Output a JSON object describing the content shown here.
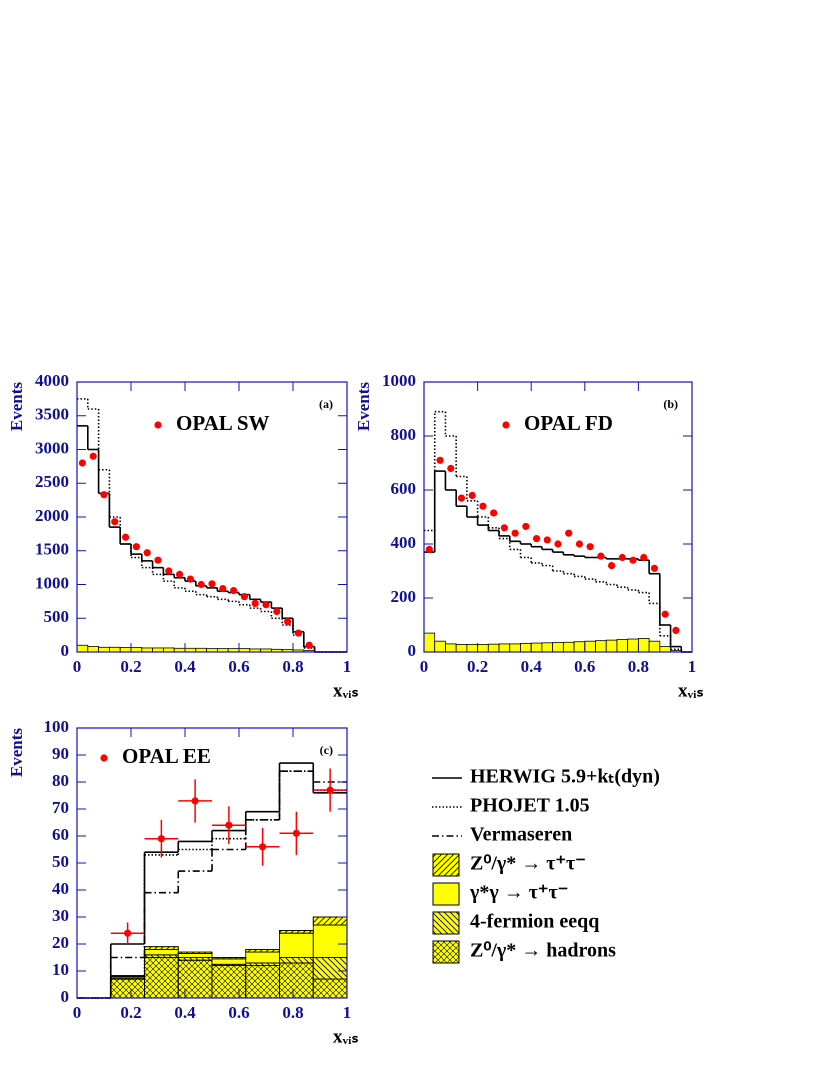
{
  "chart_data": [
    {
      "type": "histogram",
      "label": "(a)",
      "ylabel": "Events",
      "xlabel": "xᵥᵢₛ",
      "xlim": [
        0,
        1
      ],
      "ylim": [
        0,
        4000
      ],
      "xticks": [
        0,
        0.2,
        0.4,
        0.6,
        0.8,
        1
      ],
      "yticks": [
        0,
        500,
        1000,
        1500,
        2000,
        2500,
        3000,
        3500,
        4000
      ],
      "bins": [
        0,
        0.04,
        0.08,
        0.12,
        0.16,
        0.2,
        0.24,
        0.28,
        0.32,
        0.36,
        0.4,
        0.44,
        0.48,
        0.52,
        0.56,
        0.6,
        0.64,
        0.68,
        0.72,
        0.76,
        0.8,
        0.84,
        0.88,
        0.92,
        0.96,
        1
      ],
      "series": [
        {
          "name": "OPAL SW",
          "style": "points",
          "color": "#ff0000",
          "values": [
            2800,
            2900,
            2330,
            1930,
            1700,
            1560,
            1470,
            1360,
            1200,
            1150,
            1080,
            1000,
            1010,
            940,
            910,
            820,
            720,
            700,
            600,
            450,
            280,
            100,
            null,
            null,
            null
          ]
        },
        {
          "style": "solid",
          "color": "#000000",
          "values": [
            3350,
            3000,
            2350,
            1850,
            1600,
            1450,
            1350,
            1250,
            1150,
            1100,
            1050,
            980,
            950,
            900,
            880,
            850,
            780,
            740,
            650,
            500,
            300,
            80,
            0,
            0,
            0
          ]
        },
        {
          "style": "dotted",
          "color": "#000000",
          "values": [
            3750,
            3600,
            2700,
            2000,
            1600,
            1400,
            1250,
            1150,
            1050,
            950,
            900,
            850,
            820,
            780,
            750,
            700,
            650,
            600,
            500,
            400,
            250,
            60,
            0,
            0,
            0
          ]
        },
        {
          "style": "stacked",
          "color": "#ffff00",
          "values": [
            100,
            80,
            70,
            70,
            65,
            65,
            60,
            60,
            60,
            55,
            55,
            55,
            50,
            50,
            50,
            50,
            45,
            45,
            40,
            35,
            30,
            20,
            0,
            0,
            0
          ]
        }
      ]
    },
    {
      "type": "histogram",
      "label": "(b)",
      "ylabel": "Events",
      "xlabel": "xᵥᵢₛ",
      "xlim": [
        0,
        1
      ],
      "ylim": [
        0,
        1000
      ],
      "xticks": [
        0,
        0.2,
        0.4,
        0.6,
        0.8,
        1
      ],
      "yticks": [
        0,
        200,
        400,
        600,
        800,
        1000
      ],
      "bins": [
        0,
        0.04,
        0.08,
        0.12,
        0.16,
        0.2,
        0.24,
        0.28,
        0.32,
        0.36,
        0.4,
        0.44,
        0.48,
        0.52,
        0.56,
        0.6,
        0.64,
        0.68,
        0.72,
        0.76,
        0.8,
        0.84,
        0.88,
        0.92,
        0.96,
        1
      ],
      "series": [
        {
          "name": "OPAL FD",
          "style": "points",
          "color": "#ff0000",
          "values": [
            380,
            710,
            680,
            570,
            580,
            540,
            515,
            460,
            440,
            465,
            420,
            415,
            400,
            440,
            400,
            390,
            355,
            320,
            350,
            340,
            350,
            310,
            140,
            80,
            null
          ]
        },
        {
          "style": "solid",
          "color": "#000000",
          "values": [
            370,
            670,
            600,
            540,
            500,
            470,
            450,
            430,
            410,
            400,
            390,
            380,
            370,
            360,
            355,
            350,
            350,
            345,
            345,
            345,
            340,
            290,
            100,
            20,
            0
          ]
        },
        {
          "style": "dotted",
          "color": "#000000",
          "values": [
            450,
            890,
            800,
            650,
            560,
            500,
            460,
            420,
            380,
            350,
            330,
            320,
            300,
            290,
            280,
            270,
            260,
            250,
            240,
            230,
            220,
            180,
            60,
            10,
            0
          ]
        },
        {
          "style": "stacked",
          "color": "#ffff00",
          "values": [
            70,
            40,
            30,
            28,
            28,
            28,
            29,
            30,
            30,
            32,
            33,
            34,
            35,
            36,
            38,
            40,
            42,
            44,
            46,
            48,
            50,
            40,
            20,
            5,
            0
          ]
        }
      ]
    },
    {
      "type": "histogram",
      "label": "(c)",
      "ylabel": "Events",
      "xlabel": "xᵥᵢₛ",
      "xlim": [
        0,
        1
      ],
      "ylim": [
        0,
        100
      ],
      "xticks": [
        0,
        0.2,
        0.4,
        0.6,
        0.8,
        1
      ],
      "yticks": [
        0,
        10,
        20,
        30,
        40,
        50,
        60,
        70,
        80,
        90,
        100
      ],
      "bins": [
        0,
        0.125,
        0.25,
        0.375,
        0.5,
        0.625,
        0.75,
        0.875,
        1
      ],
      "series": [
        {
          "name": "OPAL EE",
          "style": "points",
          "color": "#ff0000",
          "values": [
            null,
            24,
            59,
            73,
            64,
            56,
            61,
            77
          ],
          "errors": [
            null,
            4,
            7,
            8,
            7,
            7,
            8,
            8
          ]
        },
        {
          "name": "HERWIG 5.9+kₜ(dyn)",
          "style": "solid",
          "color": "#000000",
          "values": [
            0,
            20,
            54,
            58,
            62,
            69,
            87,
            76
          ]
        },
        {
          "name": "PHOJET 1.05",
          "style": "dotted",
          "color": "#000000",
          "values": [
            0,
            7,
            53,
            55,
            59,
            66,
            84,
            77
          ]
        },
        {
          "name": "Vermaseren",
          "style": "dashdot",
          "color": "#000000",
          "values": [
            0,
            15,
            39,
            47,
            55,
            66,
            84,
            80
          ]
        },
        {
          "name": "Z⁰/γ* → τ⁺τ⁻",
          "style": "stacked",
          "hatch": "forward",
          "color": "#ffff00",
          "values": [
            0,
            0.3,
            1,
            0.5,
            0.5,
            1,
            1,
            3
          ]
        },
        {
          "name": "γ*γ → τ⁺τ⁻",
          "style": "stacked",
          "color": "#ffff00",
          "values": [
            0,
            0.5,
            2,
            1.5,
            2,
            4,
            9,
            12
          ]
        },
        {
          "name": "4-fermion eeqq",
          "style": "stacked",
          "hatch": "back",
          "color": "#ffff00",
          "values": [
            0,
            0.5,
            1,
            1,
            0.5,
            1,
            2,
            8
          ]
        },
        {
          "name": "Z⁰/γ* → hadrons",
          "style": "stacked",
          "hatch": "cross",
          "color": "#ffff00",
          "values": [
            0,
            7,
            15,
            14,
            12,
            12,
            13,
            7
          ]
        }
      ],
      "legend": "right-outside"
    }
  ]
}
